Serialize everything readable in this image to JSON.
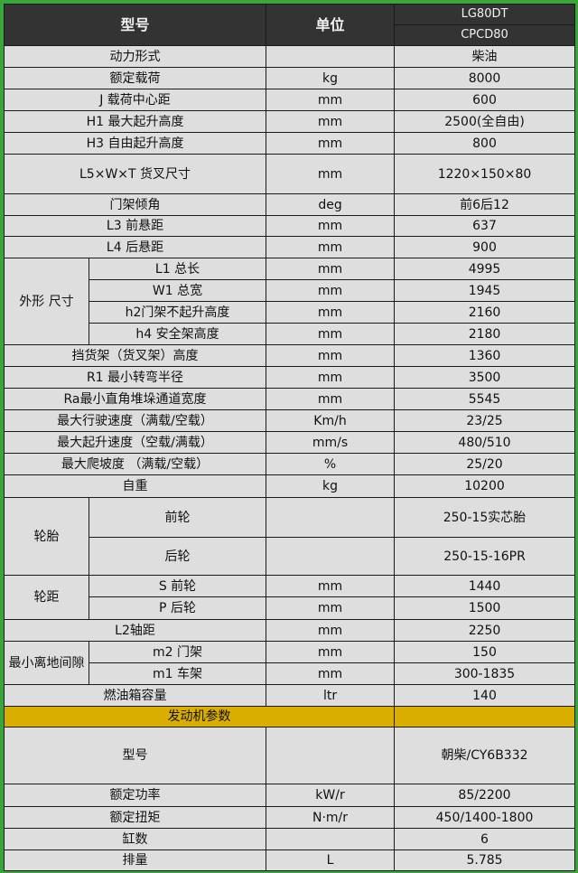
{
  "header": {
    "model_label": "型号",
    "unit_label": "单位",
    "model_names": [
      "LG80DT",
      "CPCD80"
    ]
  },
  "rows": [
    {
      "label": "动力形式",
      "unit": "",
      "value": "柴油"
    },
    {
      "label": "额定载荷",
      "unit": "kg",
      "value": "8000"
    },
    {
      "label": "J 载荷中心距",
      "unit": "mm",
      "value": "600"
    },
    {
      "label": "H1 最大起升高度",
      "unit": "mm",
      "value": "2500(全自由)"
    },
    {
      "label": "H3 自由起升高度",
      "unit": "mm",
      "value": "800"
    },
    {
      "label": "L5×W×T 货叉尺寸",
      "unit": "mm",
      "value": "1220×150×80"
    },
    {
      "label": "门架倾角",
      "unit": "deg",
      "value": "前6后12"
    },
    {
      "label": "L3 前悬距",
      "unit": "mm",
      "value": "637"
    },
    {
      "label": "L4 后悬距",
      "unit": "mm",
      "value": "900"
    },
    {
      "group": "外形 尺寸",
      "label": "L1 总长",
      "unit": "mm",
      "value": "4995"
    },
    {
      "group": "外形 尺寸",
      "label": "W1 总宽",
      "unit": "mm",
      "value": "1945"
    },
    {
      "group": "外形 尺寸",
      "label": "h2门架不起升高度",
      "unit": "mm",
      "value": "2160"
    },
    {
      "group": "外形 尺寸",
      "label": "h4 安全架高度",
      "unit": "mm",
      "value": "2180"
    },
    {
      "label": "挡货架（货叉架）高度",
      "unit": "mm",
      "value": "1360"
    },
    {
      "label": "R1 最小转弯半径",
      "unit": "mm",
      "value": "3500"
    },
    {
      "label": "Ra最小直角堆垛通道宽度",
      "unit": "mm",
      "value": "5545"
    },
    {
      "label": "最大行驶速度（满载/空载）",
      "unit": "Km/h",
      "value": "23/25"
    },
    {
      "label": "最大起升速度（空载/满载）",
      "unit": "mm/s",
      "value": "480/510"
    },
    {
      "label": "最大爬坡度 （满载/空载）",
      "unit": "%",
      "value": "25/20"
    },
    {
      "label": "自重",
      "unit": "kg",
      "value": "10200"
    },
    {
      "group": "轮胎",
      "label": "前轮",
      "unit": "",
      "value": "250-15实芯胎"
    },
    {
      "group": "轮胎",
      "label": "后轮",
      "unit": "",
      "value": "250-15-16PR"
    },
    {
      "group": "轮距",
      "label": "S 前轮",
      "unit": "mm",
      "value": "1440"
    },
    {
      "group": "轮距",
      "label": "P 后轮",
      "unit": "mm",
      "value": "1500"
    },
    {
      "label": "L2轴距",
      "unit": "mm",
      "value": "2250"
    },
    {
      "group": "最小离地间隙",
      "label": "m2 门架",
      "unit": "mm",
      "value": "150"
    },
    {
      "group": "最小离地间隙",
      "label": "m1 车架",
      "unit": "mm",
      "value": "300-1835"
    },
    {
      "label": "燃油箱容量",
      "unit": "ltr",
      "value": "140"
    },
    {
      "section": "发动机参数"
    },
    {
      "label": "型号",
      "unit": "",
      "value": "朝柴/CY6B332"
    },
    {
      "label": "额定功率",
      "unit": "kW/r",
      "value": "85/2200"
    },
    {
      "label": "额定扭矩",
      "unit": "N·m/r",
      "value": "450/1400-1800"
    },
    {
      "label": "缸数",
      "unit": "",
      "value": "6"
    },
    {
      "label": "排量",
      "unit": "L",
      "value": "5.785"
    }
  ],
  "colors": {
    "header_bg": "#333333",
    "cell_bg": "#dedede",
    "section_bg": "#d9ae00",
    "frame": "#3aa53a"
  }
}
